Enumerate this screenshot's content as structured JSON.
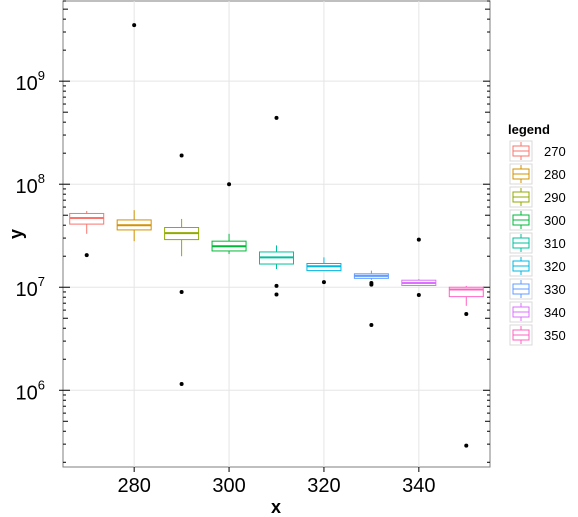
{
  "chart_data": {
    "type": "box",
    "xlabel": "x",
    "ylabel": "y",
    "y_scale": "log10",
    "xlim": [
      265,
      355
    ],
    "ylim": [
      180000,
      6000000000
    ],
    "x_ticks": [
      280,
      300,
      320,
      340
    ],
    "y_ticks": [
      1000000,
      10000000,
      100000000,
      1000000000
    ],
    "y_tick_labels": [
      {
        "base": "10",
        "exp": "6"
      },
      {
        "base": "10",
        "exp": "7"
      },
      {
        "base": "10",
        "exp": "8"
      },
      {
        "base": "10",
        "exp": "9"
      }
    ],
    "grid": true,
    "legend": {
      "title": "legend",
      "position": "right",
      "entries": [
        "270",
        "280",
        "290",
        "300",
        "310",
        "320",
        "330",
        "340",
        "350"
      ]
    },
    "series": [
      {
        "name": "270",
        "x": 270,
        "color": "#F8766D",
        "whisker_low": 33000000,
        "q1": 41000000,
        "median": 47000000,
        "q3": 52000000,
        "whisker_high": 55000000,
        "outliers": [
          20500000
        ]
      },
      {
        "name": "280",
        "x": 280,
        "color": "#D39200",
        "whisker_low": 28000000,
        "q1": 36000000,
        "median": 40000000,
        "q3": 45000000,
        "whisker_high": 56000000,
        "outliers": [
          3500000000
        ]
      },
      {
        "name": "290",
        "x": 290,
        "color": "#93AA00",
        "whisker_low": 20000000,
        "q1": 29000000,
        "median": 33500000,
        "q3": 38000000,
        "whisker_high": 46000000,
        "outliers": [
          190000000,
          9000000,
          1150000
        ]
      },
      {
        "name": "300",
        "x": 300,
        "color": "#00BA38",
        "whisker_low": 21000000,
        "q1": 22500000,
        "median": 25000000,
        "q3": 28000000,
        "whisker_high": 33000000,
        "outliers": [
          100000000
        ]
      },
      {
        "name": "310",
        "x": 310,
        "color": "#00C19F",
        "whisker_low": 15000000,
        "q1": 16800000,
        "median": 19500000,
        "q3": 22000000,
        "whisker_high": 25500000,
        "outliers": [
          440000000,
          10300000,
          8500000
        ]
      },
      {
        "name": "320",
        "x": 320,
        "color": "#00B9E3",
        "whisker_low": 14500000,
        "q1": 14500000,
        "median": 16000000,
        "q3": 17000000,
        "whisker_high": 19500000,
        "outliers": [
          11200000
        ]
      },
      {
        "name": "330",
        "x": 330,
        "color": "#619CFF",
        "whisker_low": 11800000,
        "q1": 12200000,
        "median": 12900000,
        "q3": 13500000,
        "whisker_high": 14500000,
        "outliers": [
          11000000,
          10600000,
          4300000
        ]
      },
      {
        "name": "340",
        "x": 340,
        "color": "#DB72FB",
        "whisker_low": 10400000,
        "q1": 10400000,
        "median": 11000000,
        "q3": 11700000,
        "whisker_high": 12000000,
        "outliers": [
          29000000,
          8400000
        ]
      },
      {
        "name": "350",
        "x": 350,
        "color": "#FF61C3",
        "whisker_low": 6600000,
        "q1": 8100000,
        "median": 9500000,
        "q3": 10000000,
        "whisker_high": 10300000,
        "outliers": [
          5500000,
          290000
        ]
      }
    ]
  }
}
